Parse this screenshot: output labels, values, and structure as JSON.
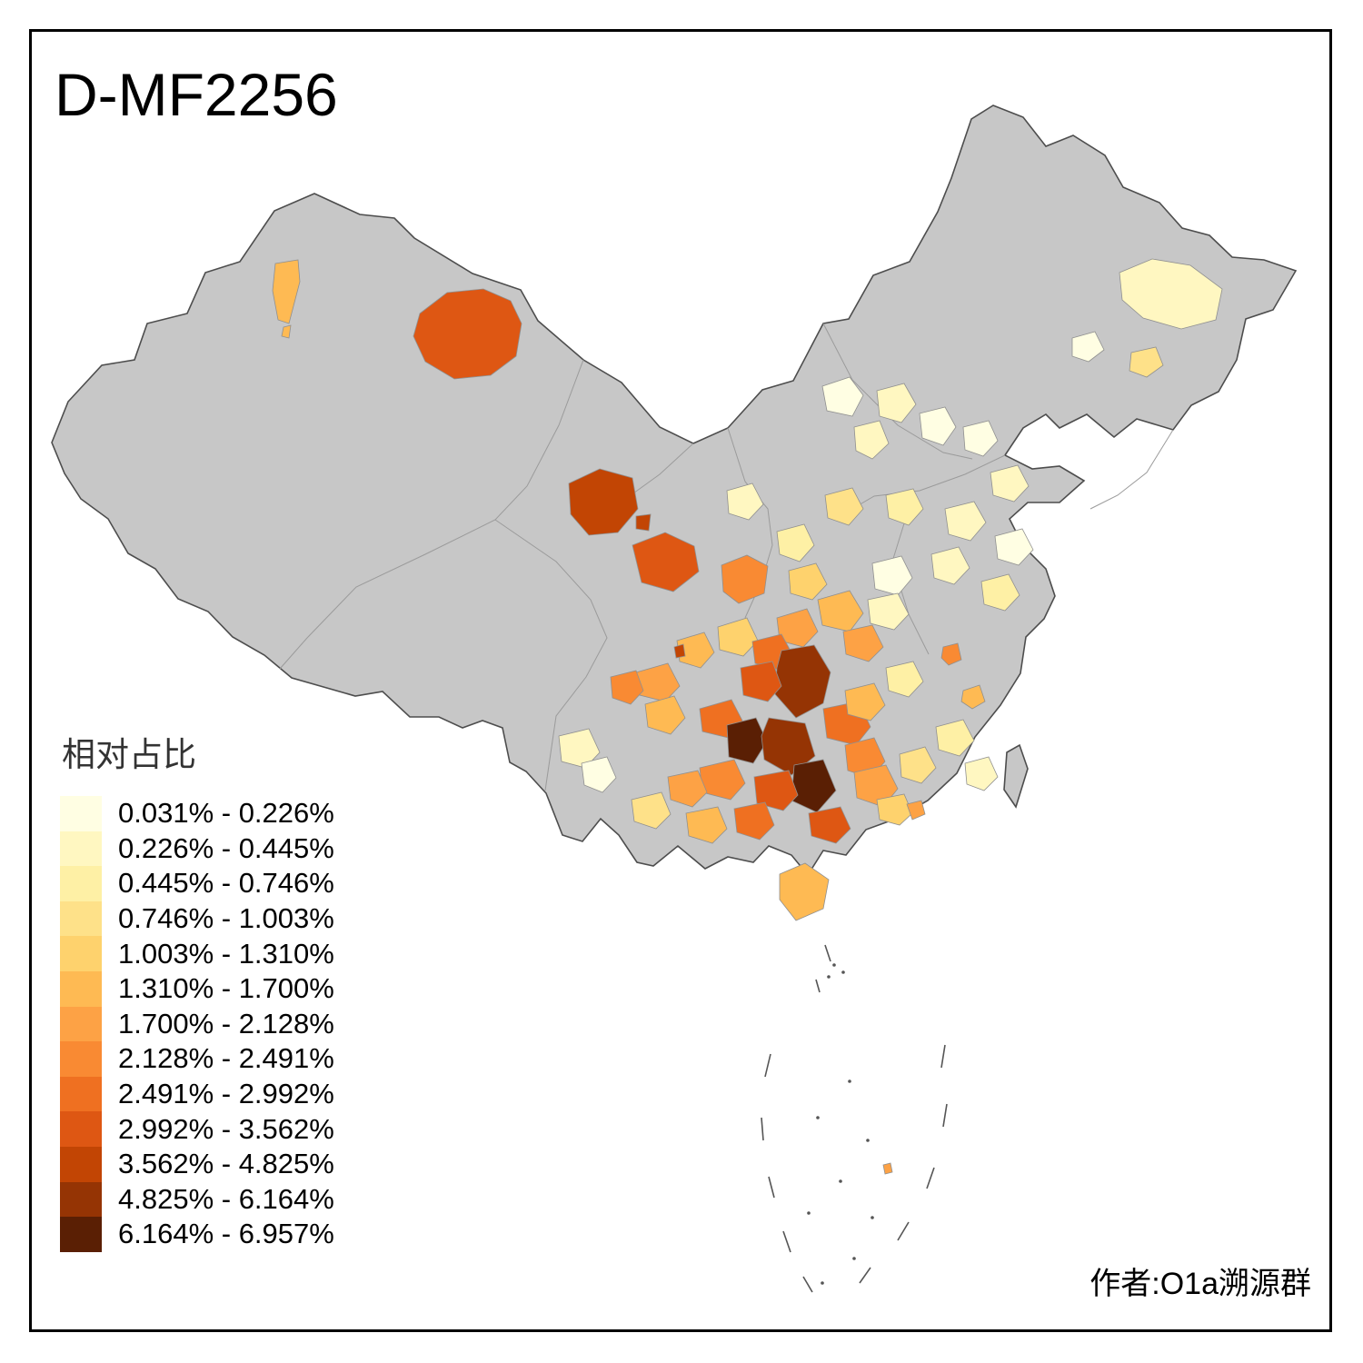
{
  "title": "D-MF2256",
  "attribution": "作者:O1a溯源群",
  "legend": {
    "title": "相对占比",
    "items": [
      {
        "label": "0.031% - 0.226%",
        "color": "#FFFEE3"
      },
      {
        "label": "0.226% - 0.445%",
        "color": "#FFF7C1"
      },
      {
        "label": "0.445% - 0.746%",
        "color": "#FEF0A5"
      },
      {
        "label": "0.746% - 1.003%",
        "color": "#FEE189"
      },
      {
        "label": "1.003% - 1.310%",
        "color": "#FED26D"
      },
      {
        "label": "1.310% - 1.700%",
        "color": "#FEBA53"
      },
      {
        "label": "1.700% - 2.128%",
        "color": "#FDA245"
      },
      {
        "label": "2.128% - 2.491%",
        "color": "#F98A33"
      },
      {
        "label": "2.491% - 2.992%",
        "color": "#EF7021"
      },
      {
        "label": "2.992% - 3.562%",
        "color": "#DE5713"
      },
      {
        "label": "3.562% - 4.825%",
        "color": "#C24504"
      },
      {
        "label": "4.825% - 6.164%",
        "color": "#953404"
      },
      {
        "label": "6.164% - 6.957%",
        "color": "#5A1F04"
      }
    ]
  },
  "map": {
    "base_fill": "#C7C7C7",
    "border_color": "#4D4D4D",
    "patches": [
      {
        "p": "303,290 328,286 330,310 318,356 306,352 300,320",
        "c": 5
      },
      {
        "p": "312,360 320,358 318,372 310,370",
        "c": 5
      },
      {
        "p": "462,345 492,322 532,318 562,331 574,356 568,392 540,413 500,417 468,398 455,370",
        "c": 9
      },
      {
        "p": "626,532 660,516 696,526 702,560 680,586 648,589 628,566",
        "c": 10
      },
      {
        "p": "700,568 716,566 714,584 700,582",
        "c": 10
      },
      {
        "p": "696,600 732,586 764,601 769,629 741,651 706,641",
        "c": 9
      },
      {
        "p": "794,622 822,611 845,623 841,653 813,664 796,651",
        "c": 7
      },
      {
        "p": "1232,300 1268,285 1310,292 1345,318 1338,352 1300,362 1258,350 1235,330",
        "c": 1
      },
      {
        "p": "1245,388 1272,382 1280,402 1262,415 1243,408",
        "c": 3
      },
      {
        "p": "1180,372 1205,365 1215,385 1198,398 1180,392",
        "c": 0
      },
      {
        "p": "905,425 935,415 950,435 938,458 910,452",
        "c": 0
      },
      {
        "p": "965,430 995,422 1008,445 992,465 968,458",
        "c": 1
      },
      {
        "p": "1012,455 1040,448 1052,470 1038,490 1015,482",
        "c": 0
      },
      {
        "p": "940,470 968,463 978,488 960,505 942,496",
        "c": 1
      },
      {
        "p": "1060,470 1088,463 1098,485 1082,502 1062,495",
        "c": 0
      },
      {
        "p": "1090,520 1120,512 1132,535 1116,552 1093,545",
        "c": 1
      },
      {
        "p": "1040,560 1072,552 1085,575 1068,595 1044,588",
        "c": 1
      },
      {
        "p": "975,545 1005,538 1016,560 1000,578 978,570",
        "c": 2
      },
      {
        "p": "908,545 938,537 950,560 934,578 911,570",
        "c": 3
      },
      {
        "p": "855,585 885,577 896,600 880,618 858,610",
        "c": 2
      },
      {
        "p": "800,540 828,532 840,555 824,572 802,565",
        "c": 1
      },
      {
        "p": "1095,590 1125,582 1137,605 1121,622 1098,615",
        "c": 0
      },
      {
        "p": "1025,610 1055,602 1067,625 1050,643 1028,636",
        "c": 1
      },
      {
        "p": "1080,640 1110,632 1122,655 1106,672 1083,665",
        "c": 2
      },
      {
        "p": "960,620 992,612 1004,636 988,655 963,648",
        "c": 0
      },
      {
        "p": "955,660 988,653 1000,676 984,693 958,686",
        "c": 1
      },
      {
        "p": "1038,712 1054,708 1058,726 1044,732 1036,724",
        "c": 7
      },
      {
        "p": "1060,760 1078,754 1084,772 1070,780 1058,772",
        "c": 5
      },
      {
        "p": "1030,800 1060,792 1072,815 1056,832 1033,825",
        "c": 2
      },
      {
        "p": "1062,840 1088,833 1098,855 1083,870 1064,863",
        "c": 1
      },
      {
        "p": "990,830 1018,822 1030,845 1014,862 992,855",
        "c": 3
      },
      {
        "p": "868,628 898,620 910,643 894,660 870,653",
        "c": 4
      },
      {
        "p": "900,660 935,650 950,675 935,695 905,688",
        "c": 5
      },
      {
        "p": "928,695 960,688 972,712 956,728 931,720",
        "c": 6
      },
      {
        "p": "975,735 1005,728 1016,750 1000,767 978,760",
        "c": 2
      },
      {
        "p": "855,680 888,670 900,695 884,712 858,705",
        "c": 6
      },
      {
        "p": "790,690 822,680 834,705 818,722 792,715",
        "c": 4
      },
      {
        "p": "745,705 775,696 786,718 771,735 748,728",
        "c": 5
      },
      {
        "p": "742,712 752,709 754,722 744,724",
        "c": 10
      },
      {
        "p": "700,740 735,730 748,755 732,772 704,765",
        "c": 6
      },
      {
        "p": "672,745 700,738 708,760 694,775 674,768",
        "c": 7
      },
      {
        "p": "710,775 742,766 754,790 738,808 713,800",
        "c": 5
      },
      {
        "p": "828,706 860,698 872,720 857,737 831,730",
        "c": 8
      },
      {
        "p": "860,716 896,710 914,740 906,774 876,790 853,764 855,735",
        "c": 11
      },
      {
        "p": "815,735 850,728 860,755 845,772 818,765",
        "c": 9
      },
      {
        "p": "770,780 805,770 818,795 802,812 773,805",
        "c": 8
      },
      {
        "p": "800,798 832,790 844,816 829,840 802,833",
        "c": 12
      },
      {
        "p": "846,790 886,796 897,832 871,853 841,836 838,810",
        "c": 11
      },
      {
        "p": "874,842 906,836 920,870 899,894 871,881",
        "c": 12
      },
      {
        "p": "906,780 945,772 958,800 942,820 910,812",
        "c": 8
      },
      {
        "p": "930,820 962,812 974,838 958,856 933,848",
        "c": 7
      },
      {
        "p": "890,895 925,888 936,912 920,928 893,920",
        "c": 9
      },
      {
        "p": "830,855 868,848 878,875 862,892 833,884",
        "c": 9
      },
      {
        "p": "770,845 808,836 820,862 804,880 773,872",
        "c": 7
      },
      {
        "p": "735,855 768,848 778,872 762,888 738,880",
        "c": 6
      },
      {
        "p": "695,880 728,872 738,896 722,912 698,904",
        "c": 3
      },
      {
        "p": "755,895 790,888 800,912 784,928 758,920",
        "c": 5
      },
      {
        "p": "808,890 842,883 852,908 836,924 811,916",
        "c": 8
      },
      {
        "p": "940,850 975,842 988,868 972,888 943,878",
        "c": 6
      },
      {
        "p": "965,880 995,874 1004,895 990,908 968,902",
        "c": 4
      },
      {
        "p": "998,885 1014,881 1018,896 1004,902",
        "c": 6
      },
      {
        "p": "930,760 962,752 974,776 958,793 933,786",
        "c": 5
      },
      {
        "p": "615,810 648,802 660,828 644,845 618,838",
        "c": 1
      },
      {
        "p": "640,840 668,833 678,856 663,872 643,864",
        "c": 0
      },
      {
        "p": "858,962 886,950 912,968 906,1000 876,1013 858,990",
        "c": 5
      },
      {
        "p": "972,1282 980,1280 982,1290 974,1292",
        "c": 6
      }
    ],
    "dashes": [
      "908,1040 914,1058",
      "898,1078 902,1092",
      "848,1160 842,1185",
      "838,1230 840,1255",
      "846,1295 852,1318",
      "862,1355 870,1378",
      "884,1405 894,1422",
      "1040,1150 1036,1175",
      "1042,1215 1038,1240",
      "1028,1285 1020,1308",
      "1000,1345 988,1365",
      "958,1395 946,1412"
    ],
    "dots": [
      [
        918,
        1062
      ],
      [
        928,
        1070
      ],
      [
        912,
        1075
      ],
      [
        935,
        1190
      ],
      [
        900,
        1230
      ],
      [
        955,
        1255
      ],
      [
        925,
        1300
      ],
      [
        890,
        1335
      ],
      [
        960,
        1340
      ],
      [
        940,
        1385
      ],
      [
        905,
        1412
      ]
    ]
  }
}
